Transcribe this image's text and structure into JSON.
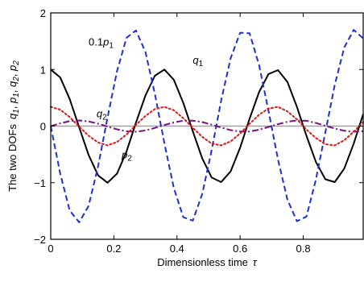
{
  "chart_data": {
    "type": "line",
    "xlabel": "Dimensionless time",
    "xlabel_symbol": "τ",
    "ylabel": "The two DOFs",
    "ylabel_symbols": "q1, p1, q2, p2",
    "xlim": [
      0,
      0.99
    ],
    "ylim": [
      -2,
      2
    ],
    "x_ticks": [
      0,
      0.2,
      0.4,
      0.6,
      0.8
    ],
    "x_tick_labels": [
      "0",
      "0.2",
      "0.4",
      "0.6",
      "0.8"
    ],
    "y_ticks": [
      -2,
      -1,
      0,
      1,
      2
    ],
    "y_tick_labels": [
      "−2",
      "−1",
      "0",
      "1",
      "2"
    ],
    "reference_line": {
      "y": 0,
      "color": "#a0a0a0"
    },
    "series": [
      {
        "name": "q1",
        "color": "#000000",
        "style": "solid",
        "dash": "",
        "x": [
          0.0,
          0.03,
          0.06,
          0.09,
          0.12,
          0.15,
          0.18,
          0.21,
          0.24,
          0.27,
          0.3,
          0.33,
          0.36,
          0.39,
          0.42,
          0.45,
          0.48,
          0.51,
          0.54,
          0.57,
          0.6,
          0.63,
          0.66,
          0.69,
          0.72,
          0.75,
          0.78,
          0.81,
          0.84,
          0.87,
          0.9,
          0.93,
          0.96,
          0.99
        ],
        "y": [
          1.0,
          0.86,
          0.48,
          -0.02,
          -0.51,
          -0.87,
          -1.0,
          -0.84,
          -0.45,
          0.06,
          0.54,
          0.89,
          1.0,
          0.82,
          0.41,
          -0.09,
          -0.57,
          -0.91,
          -0.99,
          -0.8,
          -0.38,
          0.13,
          0.6,
          0.92,
          0.99,
          0.78,
          0.34,
          -0.17,
          -0.63,
          -0.94,
          -0.99,
          -0.75,
          -0.31,
          0.21
        ]
      },
      {
        "name": "0.1p1",
        "color": "#1f2fd6",
        "style": "dashed",
        "dash": "7,4",
        "x": [
          0.0,
          0.03,
          0.06,
          0.09,
          0.12,
          0.15,
          0.18,
          0.21,
          0.24,
          0.27,
          0.3,
          0.33,
          0.36,
          0.39,
          0.42,
          0.45,
          0.48,
          0.51,
          0.54,
          0.57,
          0.6,
          0.63,
          0.66,
          0.69,
          0.72,
          0.75,
          0.78,
          0.81,
          0.84,
          0.87,
          0.9,
          0.93,
          0.96,
          0.99
        ],
        "y": [
          0.0,
          -0.84,
          -1.49,
          -1.7,
          -1.41,
          -0.71,
          0.15,
          0.97,
          1.56,
          1.69,
          1.31,
          0.57,
          -0.3,
          -1.09,
          -1.61,
          -1.67,
          -1.2,
          -0.42,
          0.45,
          1.2,
          1.65,
          1.64,
          1.08,
          0.27,
          -0.59,
          -1.3,
          -1.68,
          -1.6,
          -0.95,
          -0.11,
          0.73,
          1.39,
          1.7,
          1.55
        ]
      },
      {
        "name": "q2",
        "color": "#7a1080",
        "style": "dashdot",
        "dash": "8,3,2,3",
        "x": [
          0.0,
          0.03,
          0.06,
          0.09,
          0.12,
          0.15,
          0.18,
          0.21,
          0.24,
          0.27,
          0.3,
          0.33,
          0.36,
          0.39,
          0.42,
          0.45,
          0.48,
          0.51,
          0.54,
          0.57,
          0.6,
          0.63,
          0.66,
          0.69,
          0.72,
          0.75,
          0.78,
          0.81,
          0.84,
          0.87,
          0.9,
          0.93,
          0.96,
          0.99
        ],
        "y": [
          0.0,
          0.049,
          0.088,
          0.099,
          0.083,
          0.042,
          -0.009,
          -0.057,
          -0.092,
          -0.099,
          -0.077,
          -0.033,
          0.018,
          0.064,
          0.095,
          0.097,
          0.071,
          0.025,
          -0.026,
          -0.071,
          -0.097,
          -0.096,
          -0.064,
          -0.016,
          0.034,
          0.077,
          0.099,
          0.094,
          0.056,
          0.006,
          -0.043,
          -0.083,
          -0.1,
          -0.088
        ]
      },
      {
        "name": "p2",
        "color": "#e01818",
        "style": "dotted",
        "dash": "2,3",
        "x": [
          0.0,
          0.03,
          0.06,
          0.09,
          0.12,
          0.15,
          0.18,
          0.21,
          0.24,
          0.27,
          0.3,
          0.33,
          0.36,
          0.39,
          0.42,
          0.45,
          0.48,
          0.51,
          0.54,
          0.57,
          0.6,
          0.63,
          0.66,
          0.69,
          0.72,
          0.75,
          0.78,
          0.81,
          0.84,
          0.87,
          0.9,
          0.93,
          0.96,
          0.99
        ],
        "y": [
          0.34,
          0.29,
          0.16,
          -0.01,
          -0.17,
          -0.29,
          -0.34,
          -0.28,
          -0.15,
          0.02,
          0.18,
          0.3,
          0.34,
          0.28,
          0.14,
          -0.03,
          -0.19,
          -0.31,
          -0.34,
          -0.27,
          -0.13,
          0.04,
          0.2,
          0.31,
          0.34,
          0.26,
          0.12,
          -0.06,
          -0.21,
          -0.32,
          -0.34,
          -0.25,
          -0.1,
          0.07
        ]
      }
    ],
    "annotations": [
      {
        "id": "q1",
        "base": "q",
        "sub": "1",
        "prefix": "",
        "x": 0.45,
        "y": 1.1
      },
      {
        "id": "p1",
        "base": "p",
        "sub": "1",
        "prefix": "0.1",
        "x": 0.12,
        "y": 1.42
      },
      {
        "id": "q2",
        "base": "q",
        "sub": "2",
        "prefix": "",
        "x": 0.145,
        "y": 0.16
      },
      {
        "id": "p2",
        "base": "p",
        "sub": "2",
        "prefix": "",
        "x": 0.225,
        "y": -0.57
      }
    ]
  }
}
